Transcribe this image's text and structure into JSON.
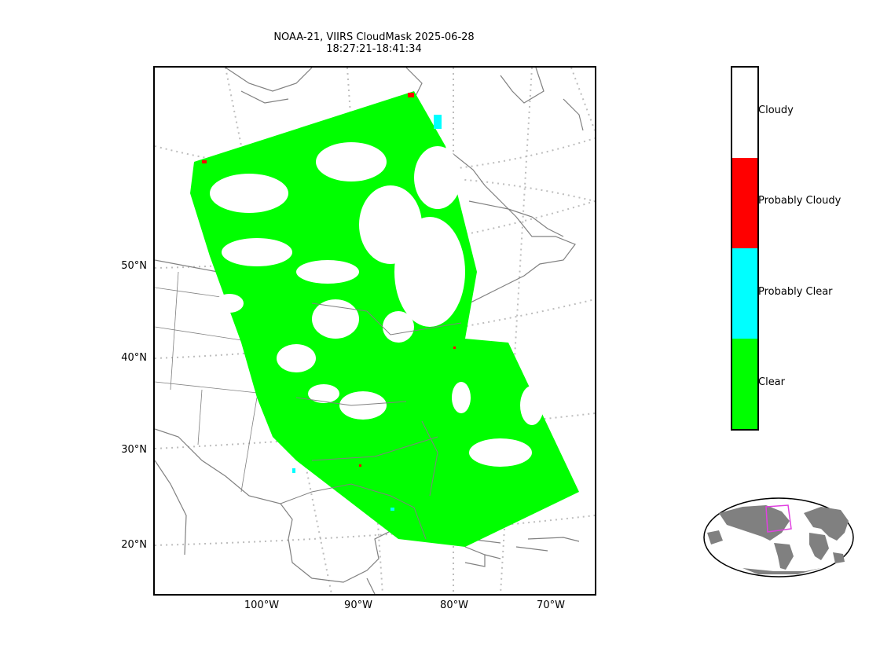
{
  "title_line1": "NOAA-21, VIIRS CloudMask 2025-06-28",
  "title_line2": "18:27:21-18:41:34",
  "lat_labels": [
    "50°N",
    "40°N",
    "30°N",
    "20°N"
  ],
  "lon_labels": [
    "100°W",
    "90°W",
    "80°W",
    "70°W"
  ],
  "legend": [
    {
      "label": "Cloudy",
      "color": "#ffffff"
    },
    {
      "label": "Probably Cloudy",
      "color": "#ff0000"
    },
    {
      "label": "Probably Clear",
      "color": "#00ffff"
    },
    {
      "label": "Clear",
      "color": "#00ff00"
    }
  ],
  "colors": {
    "coastline": "#808080",
    "graticule": "#bdbdbd",
    "overview_land": "#808080",
    "overview_box": "#e040e0"
  }
}
